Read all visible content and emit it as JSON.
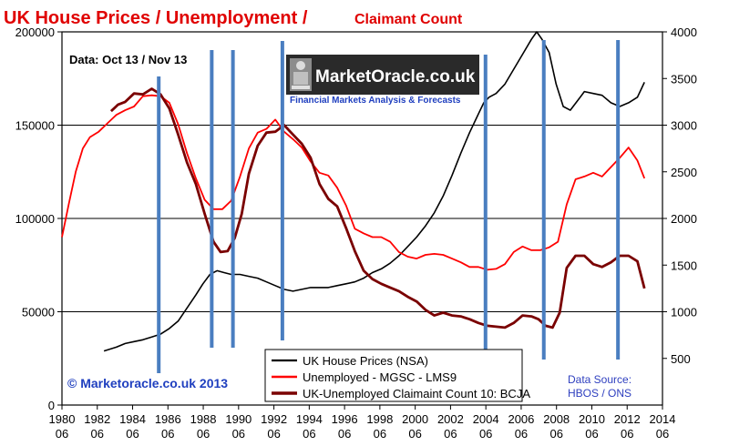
{
  "title": {
    "main": "UK House Prices  / Unemployment  /",
    "sub": "Claimant Count"
  },
  "data_note": "Data: Oct 13 / Nov 13",
  "watermark": {
    "brand": "MarketOracle.co.uk",
    "tagline": "Financial Markets Analysis & Forecasts"
  },
  "copyright": "© Marketoracle.co.uk  2013",
  "source": {
    "line1": "Data Source:",
    "line2": "HBOS / ONS"
  },
  "colors": {
    "house_prices": "#000000",
    "unemployed": "#ff0000",
    "claimant": "#7a0000",
    "vlines": "#4a7ec0",
    "title": "#e00000",
    "source": "#2e3fbf",
    "copyright": "#1f3fbf"
  },
  "chart_data": {
    "type": "line",
    "grid": true,
    "legend_position": "bottom-center",
    "x_range": [
      1980.42,
      2014.42
    ],
    "x_ticks": [
      {
        "year": "1980",
        "month": "06"
      },
      {
        "year": "1982",
        "month": "06"
      },
      {
        "year": "1984",
        "month": "06"
      },
      {
        "year": "1986",
        "month": "06"
      },
      {
        "year": "1988",
        "month": "06"
      },
      {
        "year": "1990",
        "month": "06"
      },
      {
        "year": "1992",
        "month": "06"
      },
      {
        "year": "1994",
        "month": "06"
      },
      {
        "year": "1996",
        "month": "06"
      },
      {
        "year": "1998",
        "month": "06"
      },
      {
        "year": "2000",
        "month": "06"
      },
      {
        "year": "2002",
        "month": "06"
      },
      {
        "year": "2004",
        "month": "06"
      },
      {
        "year": "2006",
        "month": "06"
      },
      {
        "year": "2008",
        "month": "06"
      },
      {
        "year": "2010",
        "month": "06"
      },
      {
        "year": "2012",
        "month": "06"
      },
      {
        "year": "2014",
        "month": "06"
      }
    ],
    "y_left": {
      "range": [
        0,
        200000
      ],
      "ticks": [
        "0",
        "50000",
        "100000",
        "150000",
        "200000"
      ]
    },
    "y_right": {
      "range": [
        0,
        4000
      ],
      "ticks": [
        "500",
        "1000",
        "1500",
        "2000",
        "2500",
        "3000",
        "3500",
        "4000"
      ]
    },
    "vertical_lines": [
      1985.9,
      1988.9,
      1990.1,
      1992.9,
      2004.4,
      2007.7,
      2011.9
    ],
    "series": [
      {
        "name": "UK House Prices (NSA)",
        "axis": "left",
        "x": [
          1982.8,
          1983.5,
          1984.0,
          1984.5,
          1985.0,
          1985.5,
          1986.0,
          1986.5,
          1987.0,
          1987.5,
          1988.0,
          1988.4,
          1988.8,
          1989.2,
          1989.6,
          1990.0,
          1990.5,
          1991.0,
          1991.5,
          1992.0,
          1992.5,
          1993.0,
          1993.5,
          1994.0,
          1994.5,
          1995.0,
          1995.5,
          1996.0,
          1996.5,
          1997.0,
          1997.5,
          1998.0,
          1998.5,
          1999.0,
          1999.5,
          2000.0,
          2000.5,
          2001.0,
          2001.5,
          2002.0,
          2002.5,
          2003.0,
          2003.5,
          2004.0,
          2004.3,
          2004.6,
          2005.0,
          2005.5,
          2006.0,
          2006.5,
          2007.0,
          2007.3,
          2007.6,
          2008.0,
          2008.4,
          2008.8,
          2009.2,
          2009.6,
          2010.0,
          2010.5,
          2011.0,
          2011.5,
          2012.0,
          2012.5,
          2013.0,
          2013.4
        ],
        "values": [
          29000,
          31000,
          33000,
          34000,
          35000,
          36500,
          38000,
          41000,
          45000,
          52000,
          59000,
          65000,
          70000,
          72000,
          71000,
          70000,
          70000,
          69000,
          68000,
          66000,
          64000,
          62000,
          61000,
          62000,
          63000,
          63000,
          63000,
          64000,
          65000,
          66000,
          68000,
          71000,
          73000,
          76000,
          80000,
          85000,
          90000,
          96000,
          103000,
          112000,
          123000,
          135000,
          146000,
          156000,
          162000,
          165000,
          167000,
          172000,
          180000,
          188000,
          196000,
          200000,
          196000,
          189000,
          172000,
          160000,
          158000,
          163000,
          168000,
          167000,
          166000,
          162000,
          160000,
          162000,
          165000,
          173000
        ]
      },
      {
        "name": "Unemployed - MGSC - LMS9",
        "axis": "right",
        "x": [
          1980.42,
          1980.8,
          1981.2,
          1981.6,
          1982.0,
          1982.5,
          1983.0,
          1983.5,
          1984.0,
          1984.5,
          1985.0,
          1985.5,
          1986.0,
          1986.5,
          1987.0,
          1987.5,
          1988.0,
          1988.5,
          1989.0,
          1989.5,
          1990.0,
          1990.5,
          1991.0,
          1991.5,
          1992.0,
          1992.5,
          1993.0,
          1993.5,
          1994.0,
          1994.5,
          1995.0,
          1995.5,
          1996.0,
          1996.5,
          1997.0,
          1997.5,
          1998.0,
          1998.5,
          1999.0,
          1999.5,
          2000.0,
          2000.5,
          2001.0,
          2001.5,
          2002.0,
          2002.5,
          2003.0,
          2003.5,
          2004.0,
          2004.5,
          2005.0,
          2005.5,
          2006.0,
          2006.5,
          2007.0,
          2007.5,
          2008.0,
          2008.5,
          2009.0,
          2009.5,
          2010.0,
          2010.5,
          2011.0,
          2011.5,
          2012.0,
          2012.5,
          2013.0,
          2013.4
        ],
        "values": [
          1800,
          2150,
          2500,
          2750,
          2870,
          2930,
          3020,
          3110,
          3160,
          3200,
          3310,
          3320,
          3310,
          3240,
          3010,
          2700,
          2430,
          2200,
          2100,
          2100,
          2190,
          2450,
          2750,
          2920,
          2960,
          3060,
          2930,
          2850,
          2760,
          2610,
          2490,
          2460,
          2330,
          2140,
          1890,
          1840,
          1800,
          1800,
          1750,
          1640,
          1590,
          1570,
          1610,
          1620,
          1610,
          1570,
          1530,
          1480,
          1480,
          1450,
          1460,
          1510,
          1640,
          1700,
          1660,
          1660,
          1690,
          1750,
          2150,
          2420,
          2450,
          2490,
          2450,
          2550,
          2650,
          2760,
          2620,
          2430
        ]
      },
      {
        "name": "UK-Unemployed Claimaint Count 10: BCJA",
        "axis": "right",
        "x": [
          1983.2,
          1983.6,
          1984.0,
          1984.5,
          1985.0,
          1985.5,
          1986.0,
          1986.5,
          1987.0,
          1987.5,
          1988.0,
          1988.5,
          1989.0,
          1989.4,
          1989.8,
          1990.2,
          1990.6,
          1991.0,
          1991.5,
          1992.0,
          1992.5,
          1993.0,
          1993.5,
          1994.0,
          1994.5,
          1995.0,
          1995.5,
          1996.0,
          1996.5,
          1997.0,
          1997.5,
          1998.0,
          1998.5,
          1999.0,
          1999.5,
          2000.0,
          2000.5,
          2001.0,
          2001.5,
          2002.0,
          2002.5,
          2003.0,
          2003.5,
          2004.0,
          2004.5,
          2005.0,
          2005.5,
          2006.0,
          2006.5,
          2007.0,
          2007.4,
          2007.8,
          2008.2,
          2008.6,
          2009.0,
          2009.5,
          2010.0,
          2010.5,
          2011.0,
          2011.5,
          2012.0,
          2012.5,
          2013.0,
          2013.4
        ],
        "values": [
          3150,
          3220,
          3250,
          3340,
          3330,
          3390,
          3330,
          3180,
          2900,
          2600,
          2370,
          2050,
          1750,
          1640,
          1650,
          1790,
          2050,
          2480,
          2780,
          2920,
          2930,
          3000,
          2900,
          2800,
          2650,
          2370,
          2210,
          2130,
          1900,
          1650,
          1440,
          1350,
          1300,
          1260,
          1220,
          1160,
          1110,
          1020,
          960,
          990,
          960,
          950,
          920,
          880,
          850,
          840,
          830,
          880,
          960,
          950,
          920,
          850,
          830,
          990,
          1470,
          1600,
          1600,
          1510,
          1480,
          1530,
          1600,
          1600,
          1540,
          1250
        ]
      }
    ]
  }
}
